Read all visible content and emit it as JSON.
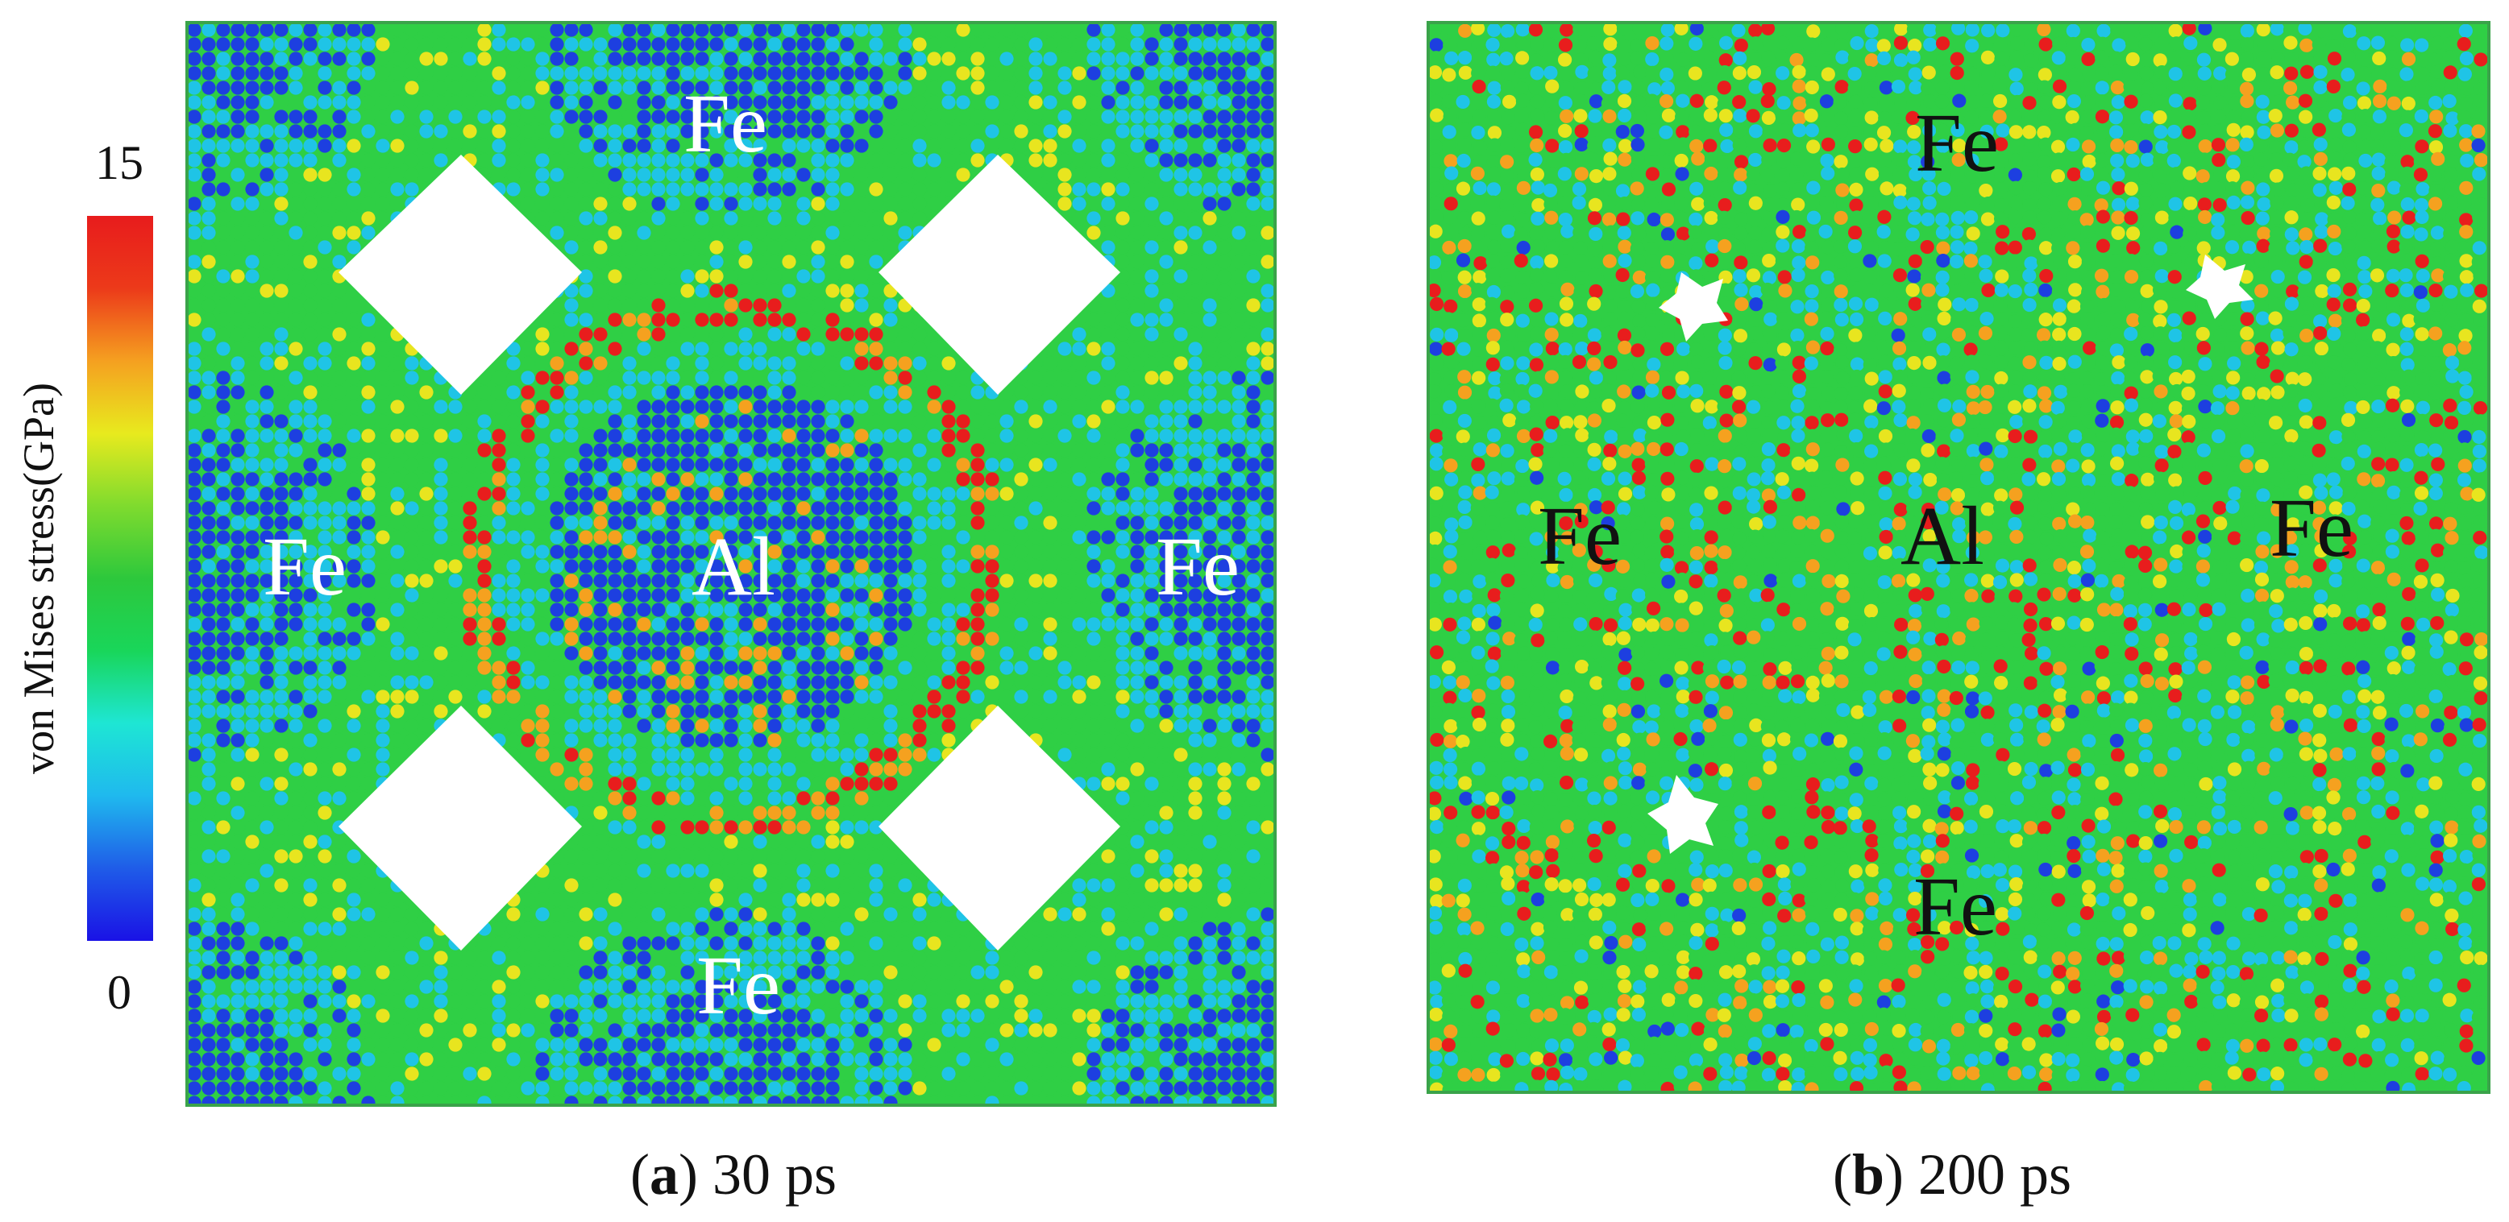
{
  "colorbar": {
    "max_label": "15",
    "min_label": "0",
    "title": "von Mises stress(GPa)",
    "stops": [
      "#1a12e6",
      "#1f5ce8",
      "#1fb9ee",
      "#1ee6d4",
      "#19d65a",
      "#2dc83c",
      "#7fdb2e",
      "#e8ea1e",
      "#f5a020",
      "#ec3a1a",
      "#e81c1c"
    ]
  },
  "panel_a": {
    "caption_letter": "a",
    "caption_rest": " 30 ps",
    "labels": [
      "Fe",
      "Fe",
      "Al",
      "Fe",
      "Fe"
    ],
    "label_color": "#ffffff"
  },
  "panel_b": {
    "caption_letter": "b",
    "caption_rest": " 200 ps",
    "labels": [
      "Fe",
      "Fe",
      "Al",
      "Fe",
      "Fe"
    ],
    "label_color": "#111111"
  },
  "colors": {
    "low": "#1d3fe0",
    "cyan": "#1fc4e6",
    "green": "#2fcf45",
    "yellow": "#e8e51f",
    "orange": "#f5a11f",
    "red": "#e81d1d"
  }
}
